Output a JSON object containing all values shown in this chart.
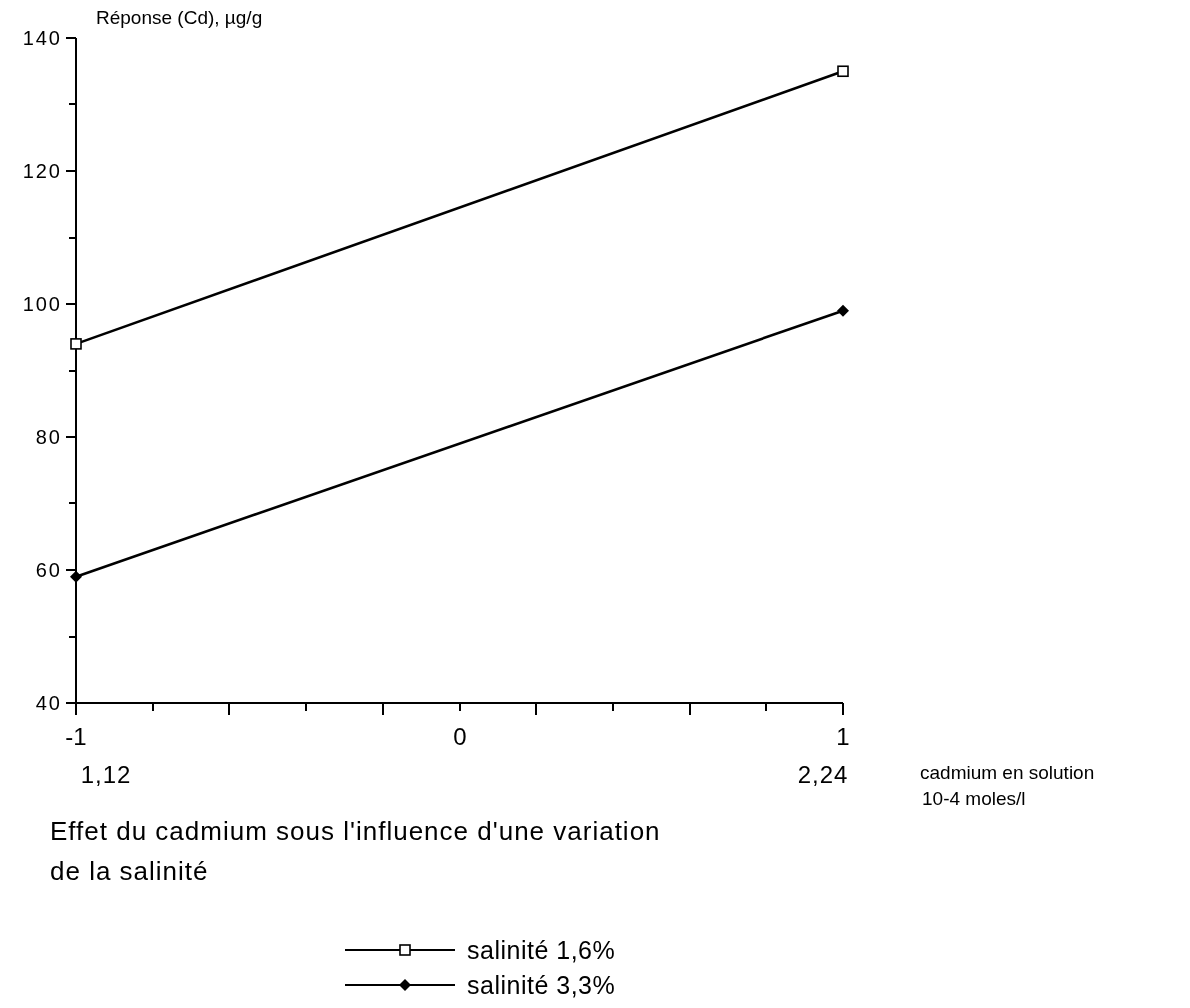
{
  "chart_data": {
    "type": "line",
    "title": "Effet du cadmium sous l'influence d'une variation de la salinité",
    "ylabel": "Réponse (Cd), µg/g",
    "xlabel": "cadmium en solution\n10-4  moles/l",
    "x": [
      -1,
      1
    ],
    "series": [
      {
        "name": "salinité  1,6%",
        "color": "#000000",
        "values": [
          94,
          135
        ],
        "marker": "square"
      },
      {
        "name": "salinité  3,3%",
        "color": "#000000",
        "values": [
          59,
          99
        ],
        "marker": "diamond"
      }
    ],
    "annotations": [
      "1,12",
      "2,24"
    ],
    "xlim": [
      -1,
      1
    ],
    "xticks": [
      -1,
      {
        "value": -0.8,
        "label": null
      },
      {
        "value": -0.6,
        "label": null
      },
      {
        "value": -0.4,
        "label": null
      },
      {
        "value": -0.2,
        "label": null
      },
      {
        "value": 0,
        "label": "0"
      },
      {
        "value": 0.2,
        "label": null
      },
      {
        "value": 0.4,
        "label": null
      },
      {
        "value": 0.6,
        "label": null
      },
      {
        "value": 0.8,
        "label": null
      },
      1
    ],
    "ylim": [
      40,
      140
    ],
    "yticks": [
      40,
      {
        "value": 50,
        "label": null
      },
      60,
      {
        "value": 70,
        "label": null
      },
      80,
      {
        "value": 90,
        "label": null
      },
      100,
      {
        "value": 110,
        "label": null
      },
      120,
      {
        "value": 130,
        "label": null
      },
      140
    ],
    "grid": false,
    "legend": "bottom",
    "line_style": "solid"
  }
}
